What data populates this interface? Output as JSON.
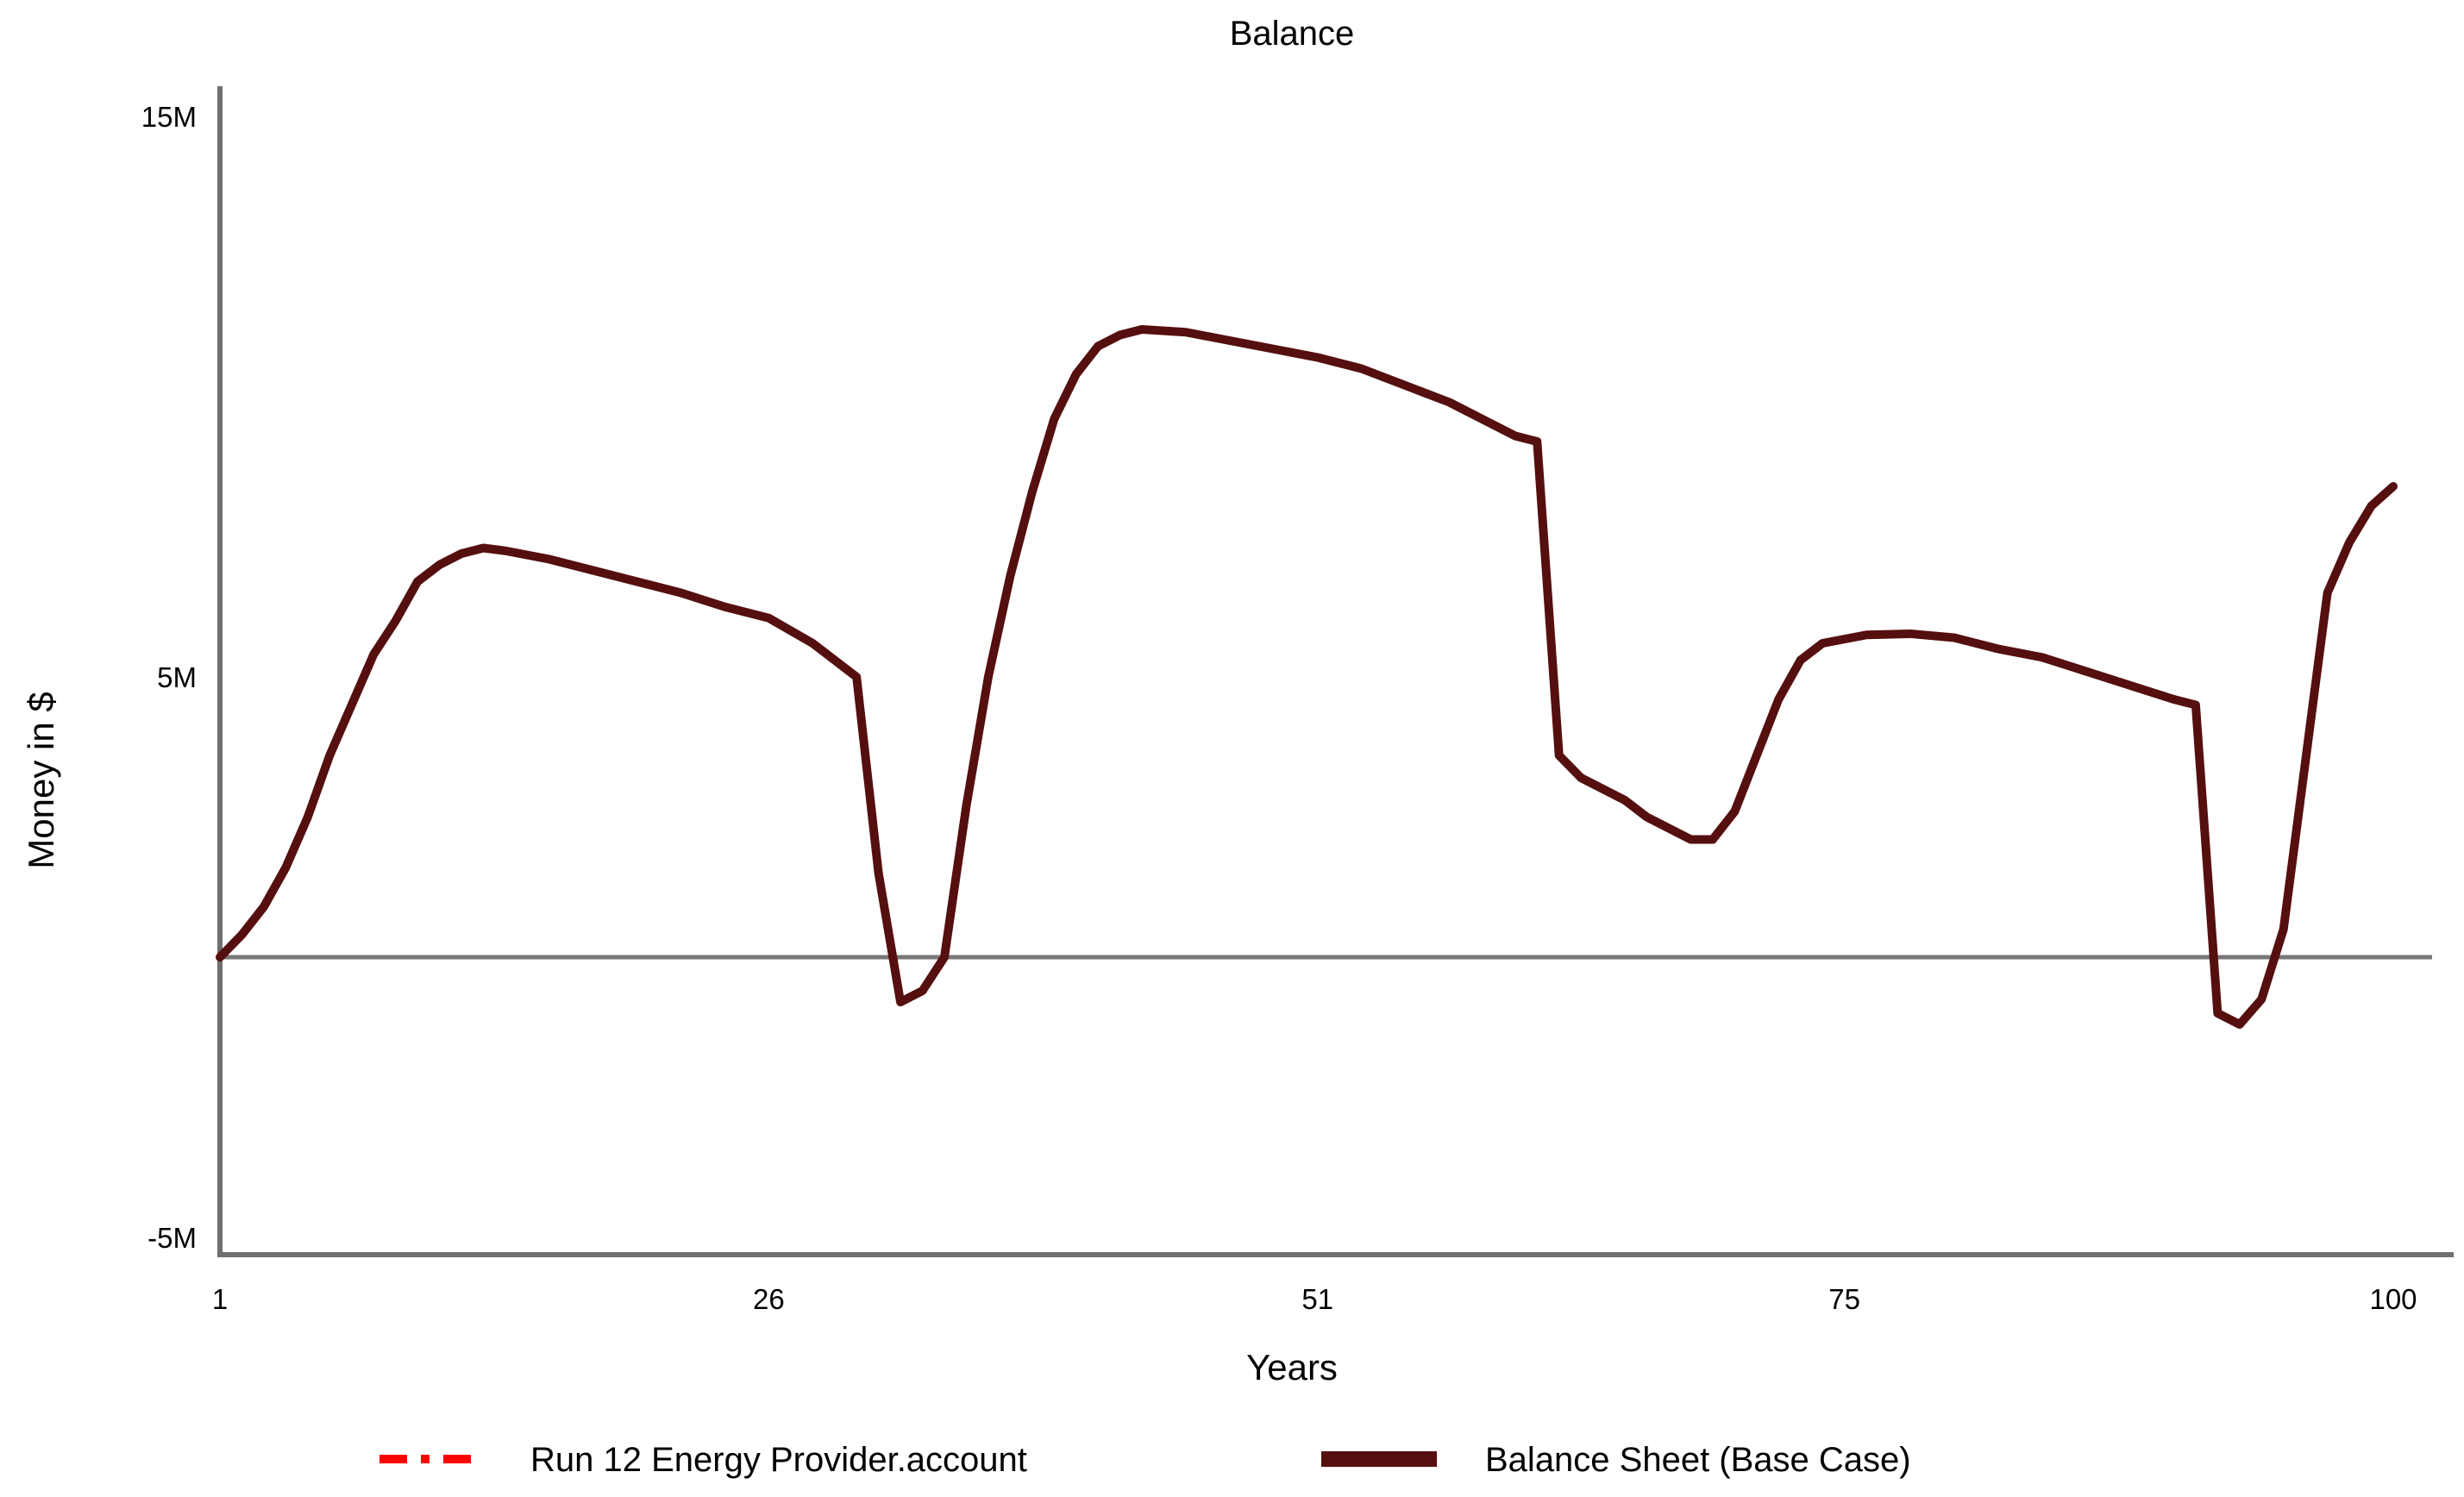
{
  "title": "Balance",
  "colors": {
    "axis": "#6f6f6f",
    "zero_line": "#787878",
    "series_run12": "#ff0000",
    "series_balance": "#550f0f",
    "text": "#000000",
    "background": "#ffffff"
  },
  "chart_data": {
    "type": "line",
    "title": "Balance",
    "xlabel": "Years",
    "ylabel": "Money in $",
    "xlim": [
      1,
      100
    ],
    "ylim_millions": [
      -5.3,
      15.5
    ],
    "x_ticks": [
      1,
      26,
      51,
      75,
      100
    ],
    "x_tick_labels": [
      "1",
      "26",
      "51",
      "75",
      "100"
    ],
    "y_tick_values_millions": [
      15,
      5,
      -5
    ],
    "y_tick_labels": [
      "15M",
      "5M",
      "-5M"
    ],
    "grid": false,
    "zero_line": true,
    "legend_position": "bottom",
    "series": [
      {
        "name": "Run 12 Energy Provider.account",
        "color": "#ff0000",
        "line_style": "dash-dot",
        "visible_in_plot": false,
        "x": [],
        "y_millions": []
      },
      {
        "name": "Balance Sheet (Base Case)",
        "color": "#550f0f",
        "line_style": "solid",
        "visible_in_plot": true,
        "x": [
          1,
          2,
          3,
          4,
          5,
          6,
          7,
          8,
          9,
          10,
          11,
          12,
          13,
          14,
          16,
          18,
          20,
          22,
          24,
          26,
          28,
          29,
          30,
          31,
          32,
          33,
          34,
          35,
          36,
          37,
          38,
          39,
          40,
          41,
          42,
          43,
          45,
          47,
          49,
          51,
          53,
          55,
          57,
          59,
          60,
          61,
          62,
          63,
          64,
          65,
          66,
          67,
          68,
          69,
          70,
          71,
          72,
          73,
          74,
          76,
          78,
          80,
          82,
          84,
          86,
          88,
          90,
          91,
          92,
          93,
          94,
          95,
          96,
          97,
          98,
          99,
          100
        ],
        "y_millions": [
          0,
          0.4,
          0.9,
          1.6,
          2.5,
          3.6,
          4.5,
          5.4,
          6.0,
          6.7,
          7.0,
          7.2,
          7.3,
          7.25,
          7.1,
          6.9,
          6.7,
          6.5,
          6.25,
          6.05,
          5.6,
          5.3,
          5.0,
          1.5,
          -0.8,
          -0.6,
          0.0,
          2.7,
          5.0,
          6.8,
          8.3,
          9.6,
          10.4,
          10.9,
          11.1,
          11.2,
          11.15,
          11.0,
          10.85,
          10.7,
          10.5,
          10.2,
          9.9,
          9.5,
          9.3,
          9.2,
          3.6,
          3.2,
          3.0,
          2.8,
          2.5,
          2.3,
          2.1,
          2.1,
          2.6,
          3.6,
          4.6,
          5.3,
          5.6,
          5.75,
          5.77,
          5.7,
          5.5,
          5.35,
          5.1,
          4.85,
          4.6,
          4.5,
          -1.0,
          -1.2,
          -0.75,
          0.5,
          3.5,
          6.5,
          7.4,
          8.05,
          8.4
        ]
      }
    ]
  },
  "legend": {
    "items": [
      {
        "label": "Run 12 Energy Provider.account",
        "color": "#ff0000",
        "style": "dash-dot"
      },
      {
        "label": "Balance Sheet (Base Case)",
        "color": "#550f0f",
        "style": "solid"
      }
    ]
  }
}
